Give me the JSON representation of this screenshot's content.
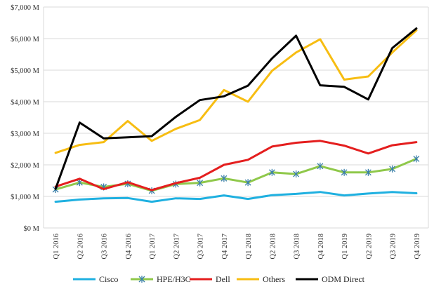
{
  "chart_data": {
    "type": "line",
    "title": "",
    "xlabel": "",
    "ylabel": "",
    "categories": [
      "Q1 2016",
      "Q2 2016",
      "Q3 2016",
      "Q4 2016",
      "Q1 2017",
      "Q2 2017",
      "Q3 2017",
      "Q4 2017",
      "Q1 2018",
      "Q2 2018",
      "Q3 2018",
      "Q4 2018",
      "Q1 2019",
      "Q2 2019",
      "Q3 2019",
      "Q4 2019"
    ],
    "ylim": [
      0,
      7000
    ],
    "y_ticks": [
      0,
      1000,
      2000,
      3000,
      4000,
      5000,
      6000,
      7000
    ],
    "y_tick_labels": [
      "$0 M",
      "$1,000 M",
      "$2,000 M",
      "$3,000 M",
      "$4,000 M",
      "$5,000 M",
      "$6,000 M",
      "$7,000 M"
    ],
    "grid": true,
    "legend_position": "bottom",
    "series": [
      {
        "name": "Cisco",
        "color": "#1fb0e0",
        "marker": "none",
        "values": [
          830,
          900,
          940,
          950,
          830,
          940,
          920,
          1030,
          920,
          1040,
          1080,
          1140,
          1030,
          1090,
          1140,
          1100
        ]
      },
      {
        "name": "HPE/H3C",
        "color": "#8fc84a",
        "marker": "asterisk",
        "values": [
          1220,
          1440,
          1300,
          1400,
          1180,
          1390,
          1430,
          1570,
          1440,
          1760,
          1710,
          1960,
          1760,
          1760,
          1870,
          2190
        ]
      },
      {
        "name": "Dell",
        "color": "#e41e1e",
        "marker": "none",
        "values": [
          1310,
          1560,
          1230,
          1450,
          1200,
          1420,
          1590,
          2000,
          2160,
          2580,
          2700,
          2760,
          2610,
          2360,
          2620,
          2720
        ]
      },
      {
        "name": "Others",
        "color": "#f7bd12",
        "marker": "none",
        "values": [
          2380,
          2630,
          2720,
          3390,
          2760,
          3140,
          3420,
          4370,
          4000,
          4980,
          5560,
          5980,
          4700,
          4800,
          5560,
          6260
        ]
      },
      {
        "name": "ODM Direct",
        "color": "#000000",
        "marker": "none",
        "values": [
          1240,
          3340,
          2840,
          2870,
          2910,
          3520,
          4050,
          4170,
          4510,
          5370,
          6090,
          4520,
          4470,
          4070,
          5700,
          6320
        ]
      }
    ]
  }
}
